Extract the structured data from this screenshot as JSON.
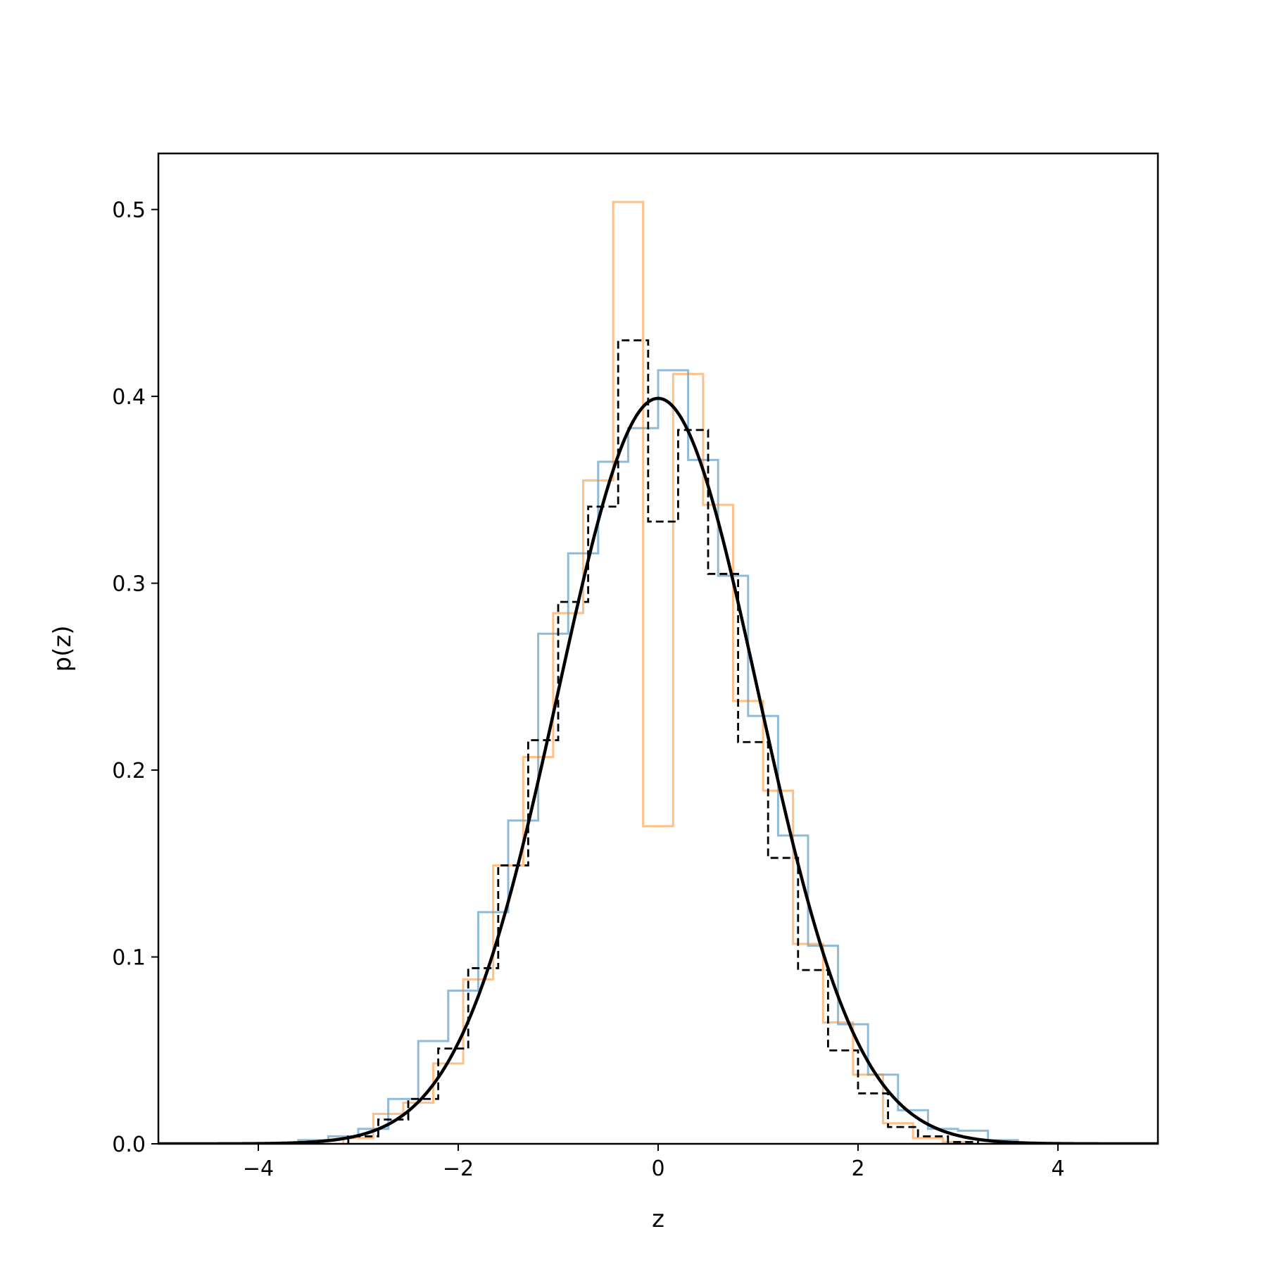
{
  "chart_data": {
    "type": "histogram",
    "title": "",
    "xlabel": "z",
    "ylabel": "p(z)",
    "xlim": [
      -5,
      5
    ],
    "ylim": [
      0,
      0.53
    ],
    "xticks": [
      -4,
      -2,
      0,
      2,
      4
    ],
    "xtick_labels": [
      "−4",
      "−2",
      "0",
      "2",
      "4"
    ],
    "yticks": [
      0.0,
      0.1,
      0.2,
      0.3,
      0.4,
      0.5
    ],
    "ytick_labels": [
      "0.0",
      "0.1",
      "0.2",
      "0.3",
      "0.4",
      "0.5"
    ],
    "grid": false,
    "legend": "none",
    "series": [
      {
        "style": "step",
        "color": "#1f77b4",
        "alpha": 0.5,
        "edges": [
          -3.6,
          -3.3,
          -3.0,
          -2.7,
          -2.4,
          -2.1,
          -1.8,
          -1.5,
          -1.2,
          -0.9,
          -0.6,
          -0.3,
          0.0,
          0.3,
          0.6,
          0.9,
          1.2,
          1.5,
          1.8,
          2.1,
          2.4,
          2.7,
          3.0,
          3.3,
          3.6
        ],
        "values": [
          0.002,
          0.004,
          0.008,
          0.024,
          0.055,
          0.082,
          0.124,
          0.173,
          0.273,
          0.316,
          0.365,
          0.383,
          0.414,
          0.366,
          0.304,
          0.229,
          0.165,
          0.106,
          0.064,
          0.037,
          0.018,
          0.008,
          0.007,
          0.002
        ]
      },
      {
        "style": "step",
        "color": "#ff7f0e",
        "alpha": 0.5,
        "edges": [
          -3.15,
          -2.85,
          -2.55,
          -2.25,
          -1.95,
          -1.65,
          -1.35,
          -1.05,
          -0.75,
          -0.45,
          -0.15,
          0.15,
          0.45,
          0.75,
          1.05,
          1.35,
          1.65,
          1.95,
          2.25,
          2.55,
          2.85,
          3.15
        ],
        "values": [
          0.003,
          0.016,
          0.022,
          0.043,
          0.088,
          0.149,
          0.207,
          0.284,
          0.355,
          0.504,
          0.17,
          0.412,
          0.342,
          0.237,
          0.189,
          0.107,
          0.065,
          0.037,
          0.011,
          0.003,
          0.001
        ]
      },
      {
        "style": "step-dashed",
        "color": "#000000",
        "alpha": 1,
        "edges": [
          -3.1,
          -2.8,
          -2.5,
          -2.2,
          -1.9,
          -1.6,
          -1.3,
          -1.0,
          -0.7,
          -0.4,
          -0.1,
          0.2,
          0.5,
          0.8,
          1.1,
          1.4,
          1.7,
          2.0,
          2.3,
          2.6,
          2.9,
          3.2
        ],
        "values": [
          0.004,
          0.013,
          0.024,
          0.051,
          0.094,
          0.149,
          0.216,
          0.29,
          0.341,
          0.43,
          0.333,
          0.382,
          0.305,
          0.215,
          0.153,
          0.093,
          0.05,
          0.027,
          0.009,
          0.004,
          0.001
        ]
      },
      {
        "style": "line",
        "color": "#000000",
        "function": "standard normal pdf",
        "mean": 0,
        "std": 1,
        "x_range": [
          -5,
          5
        ]
      }
    ]
  }
}
